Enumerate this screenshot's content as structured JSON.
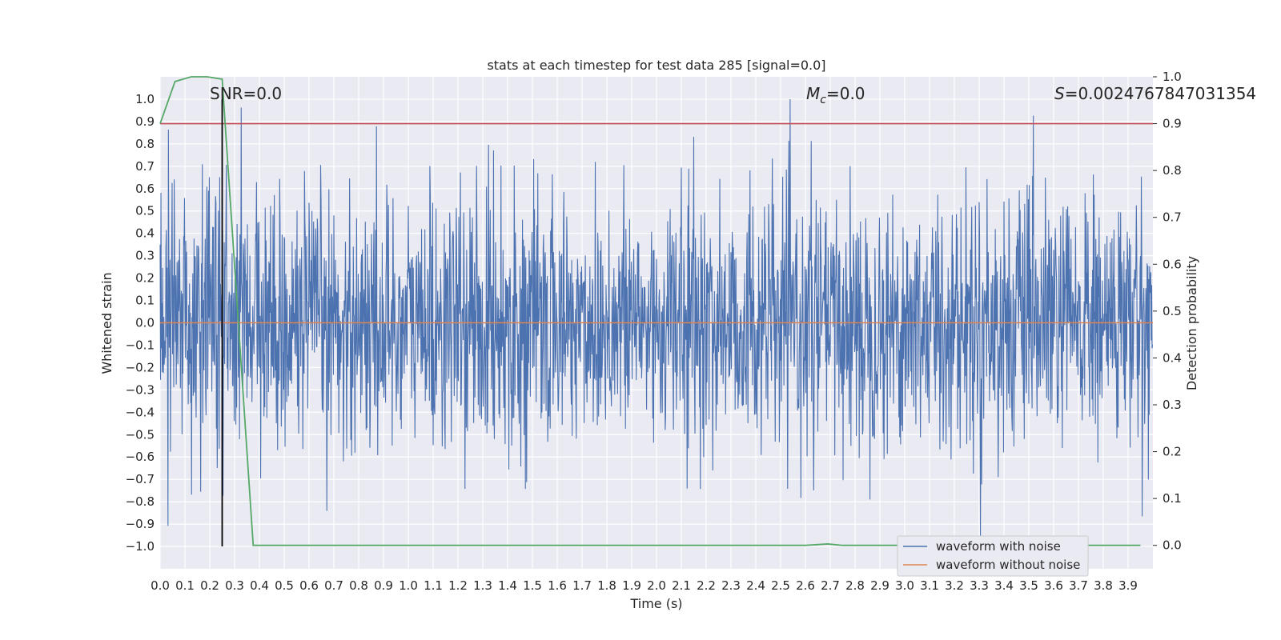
{
  "chart_data": {
    "type": "line",
    "title": "stats at each timestep for test data 285 [signal=0.0]",
    "xlabel": "Time (s)",
    "ylabel": "Whitened strain",
    "y2label": "Detection probability",
    "xlim": [
      0.0,
      4.0
    ],
    "ylim": [
      -1.1,
      1.1
    ],
    "y2lim": [
      -0.05,
      1.0
    ],
    "x_ticks": [
      "0.0",
      "0.1",
      "0.2",
      "0.3",
      "0.4",
      "0.5",
      "0.6",
      "0.7",
      "0.8",
      "0.9",
      "1.0",
      "1.1",
      "1.2",
      "1.3",
      "1.4",
      "1.5",
      "1.6",
      "1.7",
      "1.8",
      "1.9",
      "2.0",
      "2.1",
      "2.2",
      "2.3",
      "2.4",
      "2.5",
      "2.6",
      "2.7",
      "2.8",
      "2.9",
      "3.0",
      "3.1",
      "3.2",
      "3.3",
      "3.4",
      "3.5",
      "3.6",
      "3.7",
      "3.8",
      "3.9"
    ],
    "y_ticks": [
      "1.0",
      "0.9",
      "0.8",
      "0.7",
      "0.6",
      "0.5",
      "0.4",
      "0.3",
      "0.2",
      "0.1",
      "0.0",
      "-0.1",
      "-0.2",
      "-0.3",
      "-0.4",
      "-0.5",
      "-0.6",
      "-0.7",
      "-0.8",
      "-0.9",
      "-1.0"
    ],
    "y2_ticks": [
      "1.0",
      "0.9",
      "0.8",
      "0.7",
      "0.6",
      "0.5",
      "0.4",
      "0.3",
      "0.2",
      "0.1",
      "0.0"
    ],
    "annotations": {
      "snr": "SNR=0.0",
      "mc": "=0.0",
      "mc_symbol": "M",
      "mc_sub": "c",
      "s": "=0.0024767847031354",
      "s_symbol": "S"
    },
    "grid": true,
    "legend_position": "lower-right",
    "series": [
      {
        "name": "waveform with noise",
        "color": "#4c72b0",
        "axis": "left",
        "kind": "noise",
        "amplitude_range": [
          -1.0,
          1.0
        ]
      },
      {
        "name": "waveform without noise",
        "color": "#dd8452",
        "axis": "left",
        "x": [
          0.0,
          4.0
        ],
        "y": [
          0.0,
          0.0
        ]
      },
      {
        "name": "",
        "color": "#55a868",
        "axis": "right",
        "x": [
          0.0,
          0.06,
          0.125,
          0.19,
          0.25,
          0.375,
          0.5,
          1.0,
          1.5,
          2.0,
          2.5,
          2.6,
          2.69,
          2.75,
          3.0,
          3.5,
          3.95
        ],
        "y": [
          0.9,
          0.99,
          1.0,
          1.0,
          0.995,
          0.0,
          0.0,
          0.0,
          0.0,
          0.0,
          0.0,
          0.0,
          0.003,
          0.0,
          0.0,
          0.0,
          0.0
        ]
      }
    ],
    "threshold": {
      "axis": "right",
      "value": 0.9,
      "color": "#c44e52"
    },
    "marker_line": {
      "x": 0.25,
      "y_from": -1.0,
      "y_to": 1.0,
      "color": "#000000"
    }
  }
}
